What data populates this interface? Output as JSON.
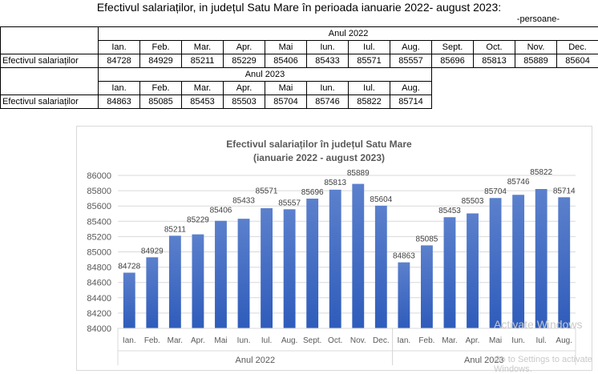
{
  "document": {
    "title": "Efectivul salariaților, in județul Satu Mare în perioada ianuarie 2022- august 2023:",
    "unit_note": "-persoane-"
  },
  "table": {
    "row_label": "Efectivul salariaților",
    "year_2022": {
      "header": "Anul 2022",
      "months": [
        "Ian.",
        "Feb.",
        "Mar.",
        "Apr.",
        "Mai",
        "Iun.",
        "Iul.",
        "Aug.",
        "Sept.",
        "Oct.",
        "Nov.",
        "Dec."
      ],
      "values": [
        "84728",
        "84929",
        "85211",
        "85229",
        "85406",
        "85433",
        "85571",
        "85557",
        "85696",
        "85813",
        "85889",
        "85604"
      ]
    },
    "year_2023": {
      "header": "Anul 2023",
      "months": [
        "Ian.",
        "Feb.",
        "Mar.",
        "Apr.",
        "Mai",
        "Iun.",
        "Iul.",
        "Aug."
      ],
      "values": [
        "84863",
        "85085",
        "85453",
        "85503",
        "85704",
        "85746",
        "85822",
        "85714"
      ]
    }
  },
  "chart_data": {
    "type": "bar",
    "title": "Efectivul salariaților în județul Satu Mare",
    "subtitle": "(ianuarie 2022 - august 2023)",
    "xlabel": "",
    "ylabel": "",
    "ylim": [
      84000,
      86000
    ],
    "y_ticks": [
      84000,
      84200,
      84400,
      84600,
      84800,
      85000,
      85200,
      85400,
      85600,
      85800,
      86000
    ],
    "grid": true,
    "legend": "none",
    "bar_color": "#4472c4",
    "groups": [
      {
        "label": "Anul 2022",
        "categories": [
          "Ian.",
          "Feb.",
          "Mar.",
          "Apr.",
          "Mai",
          "Iun.",
          "Iul.",
          "Aug.",
          "Sept.",
          "Oct.",
          "Nov.",
          "Dec."
        ],
        "values": [
          84728,
          84929,
          85211,
          85229,
          85406,
          85433,
          85571,
          85557,
          85696,
          85813,
          85889,
          85604
        ]
      },
      {
        "label": "Anul 2023",
        "categories": [
          "Ian.",
          "Feb.",
          "Mar.",
          "Apr.",
          "Mai",
          "Iun.",
          "Iul.",
          "Aug."
        ],
        "values": [
          84863,
          85085,
          85453,
          85503,
          85704,
          85746,
          85822,
          85714
        ]
      }
    ]
  },
  "overlay": {
    "watermark_line1": "Activate Windows",
    "watermark_line2": "Go to Settings to activate Windows."
  }
}
